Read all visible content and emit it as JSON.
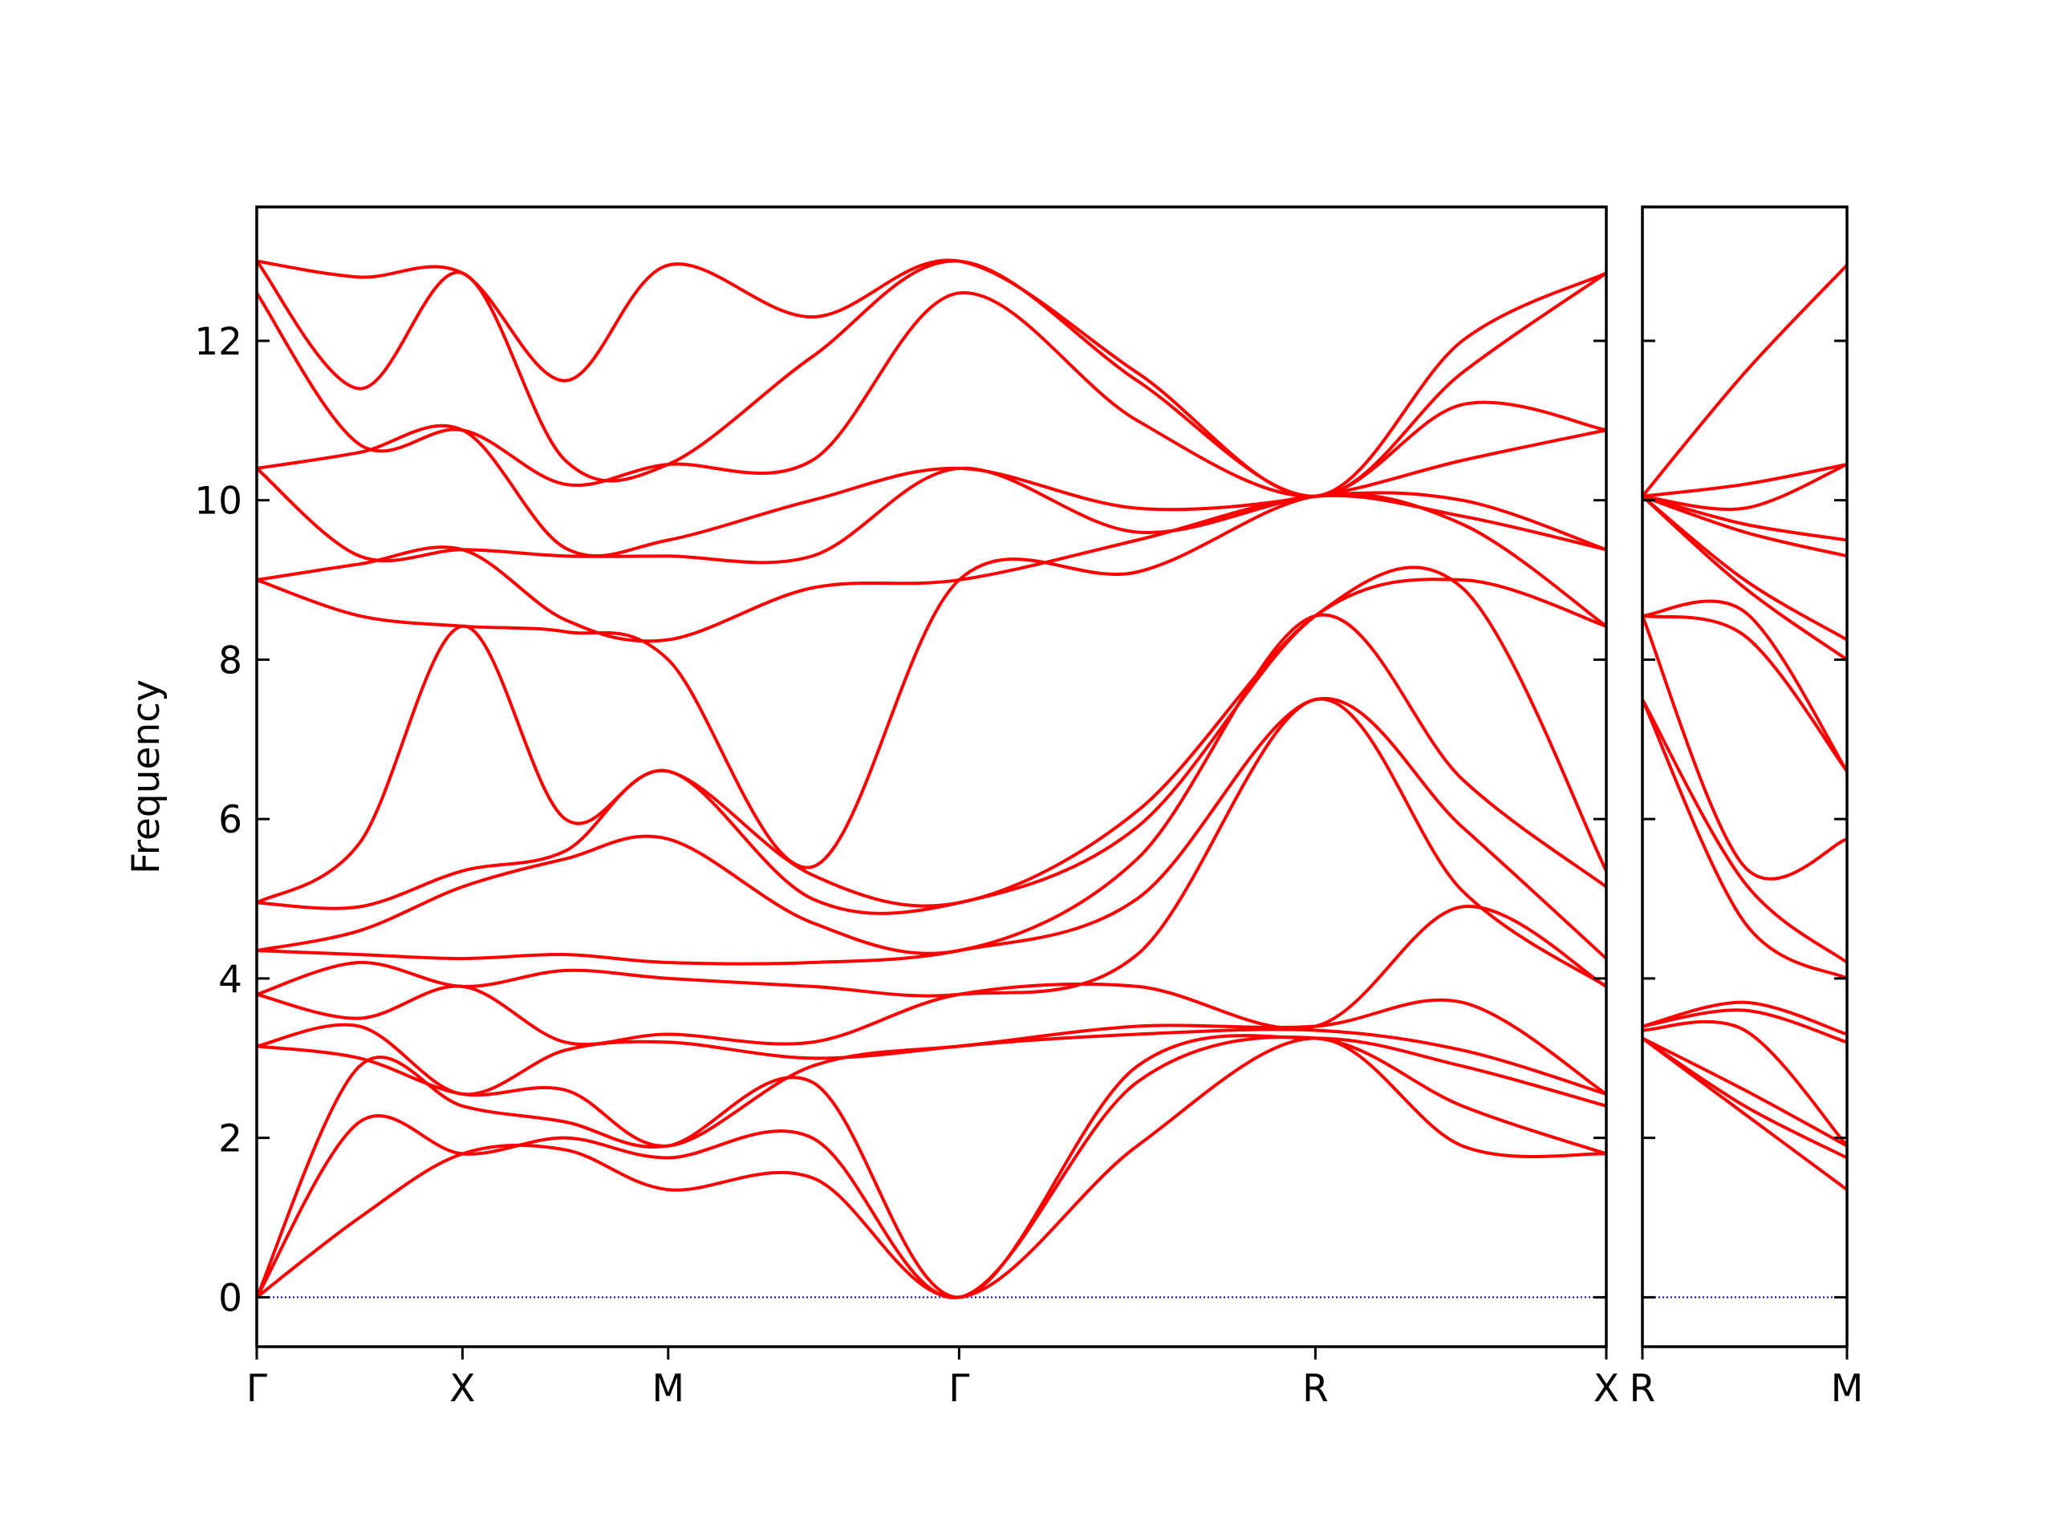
{
  "chart_data": [
    {
      "type": "line",
      "y_label": "Frequency",
      "color": "#ff0000",
      "x": [
        0,
        0.25,
        0.5,
        0.75,
        1.0,
        1.35,
        1.707,
        2.14,
        2.573,
        2.93,
        3.28
      ],
      "xlim": [
        0,
        3.28
      ],
      "xticks": [
        {
          "value": 0,
          "label": "Γ"
        },
        {
          "value": 0.5,
          "label": "X"
        },
        {
          "value": 1.0,
          "label": "M"
        },
        {
          "value": 1.707,
          "label": "Γ"
        },
        {
          "value": 2.573,
          "label": "R"
        },
        {
          "value": 3.28,
          "label": "X"
        }
      ],
      "ylim": [
        -0.62,
        13.68
      ],
      "yticks": [
        0,
        2,
        4,
        6,
        8,
        10,
        12
      ],
      "show_ytick_labels": true,
      "hlines": [
        {
          "value": 0,
          "color": "#0000cc"
        }
      ],
      "series": [
        {
          "values": [
            0,
            1.0,
            1.8,
            1.85,
            1.35,
            1.5,
            0,
            1.9,
            3.25,
            1.9,
            1.8
          ]
        },
        {
          "values": [
            0,
            2.2,
            1.8,
            2.0,
            1.75,
            2.0,
            0,
            2.7,
            3.25,
            2.4,
            1.8
          ]
        },
        {
          "values": [
            0,
            2.9,
            2.4,
            2.2,
            1.9,
            2.7,
            0,
            2.9,
            3.25,
            2.9,
            2.4
          ]
        },
        {
          "values": [
            3.15,
            3.0,
            2.55,
            2.6,
            1.9,
            2.9,
            3.15,
            3.3,
            3.35,
            3.1,
            2.55
          ]
        },
        {
          "values": [
            3.15,
            3.4,
            2.55,
            3.1,
            3.2,
            3.0,
            3.15,
            3.4,
            3.4,
            3.7,
            2.55
          ]
        },
        {
          "values": [
            3.8,
            3.5,
            3.9,
            3.2,
            3.3,
            3.2,
            3.8,
            3.9,
            3.4,
            4.9,
            3.9
          ]
        },
        {
          "values": [
            3.8,
            4.2,
            3.9,
            4.1,
            4.0,
            3.9,
            3.8,
            4.3,
            7.5,
            5.1,
            3.9
          ]
        },
        {
          "values": [
            4.35,
            4.3,
            4.25,
            4.3,
            4.2,
            4.2,
            4.35,
            5.0,
            7.5,
            5.9,
            4.25
          ]
        },
        {
          "values": [
            4.35,
            4.6,
            5.15,
            5.5,
            5.75,
            4.7,
            4.35,
            5.5,
            8.55,
            6.5,
            5.15
          ]
        },
        {
          "values": [
            4.95,
            4.9,
            5.35,
            5.6,
            6.6,
            5.0,
            4.95,
            5.9,
            8.55,
            8.9,
            5.35
          ]
        },
        {
          "values": [
            4.95,
            5.7,
            8.42,
            6.0,
            6.6,
            5.3,
            4.95,
            6.1,
            8.55,
            9.0,
            8.42
          ]
        },
        {
          "values": [
            9.0,
            8.55,
            8.42,
            8.35,
            8.0,
            5.4,
            9.0,
            9.1,
            10.05,
            9.7,
            8.42
          ]
        },
        {
          "values": [
            9.0,
            9.2,
            9.38,
            8.5,
            8.25,
            8.9,
            9.0,
            9.5,
            10.05,
            9.8,
            9.38
          ]
        },
        {
          "values": [
            10.4,
            9.3,
            9.38,
            9.3,
            9.3,
            9.3,
            10.4,
            9.6,
            10.05,
            10.0,
            9.38
          ]
        },
        {
          "values": [
            10.4,
            10.6,
            10.88,
            9.4,
            9.5,
            10.0,
            10.4,
            9.9,
            10.05,
            10.5,
            10.88
          ]
        },
        {
          "values": [
            12.6,
            10.7,
            10.88,
            10.2,
            10.45,
            10.5,
            12.6,
            11.0,
            10.05,
            11.2,
            10.88
          ]
        },
        {
          "values": [
            13.0,
            11.4,
            12.85,
            10.5,
            10.45,
            11.8,
            13.0,
            11.5,
            10.05,
            11.6,
            12.85
          ]
        },
        {
          "values": [
            13.0,
            12.8,
            12.85,
            11.5,
            12.95,
            12.3,
            13.0,
            11.6,
            10.05,
            12.0,
            12.85
          ]
        }
      ]
    },
    {
      "type": "line",
      "color": "#ff0000",
      "x": [
        0,
        0.25,
        0.5
      ],
      "xlim": [
        0,
        0.5
      ],
      "xticks": [
        {
          "value": 0,
          "label": "R"
        },
        {
          "value": 0.5,
          "label": "M"
        }
      ],
      "ylim": [
        -0.62,
        13.68
      ],
      "yticks": [
        0,
        2,
        4,
        6,
        8,
        10,
        12
      ],
      "show_ytick_labels": false,
      "hlines": [
        {
          "value": 0,
          "color": "#0000cc"
        }
      ],
      "series": [
        {
          "values": [
            3.25,
            2.3,
            1.35
          ]
        },
        {
          "values": [
            3.25,
            2.4,
            1.75
          ]
        },
        {
          "values": [
            3.25,
            2.6,
            1.9
          ]
        },
        {
          "values": [
            3.35,
            3.35,
            1.9
          ]
        },
        {
          "values": [
            3.4,
            3.6,
            3.2
          ]
        },
        {
          "values": [
            3.4,
            3.7,
            3.3
          ]
        },
        {
          "values": [
            7.5,
            4.7,
            4.0
          ]
        },
        {
          "values": [
            7.5,
            5.2,
            4.2
          ]
        },
        {
          "values": [
            8.55,
            5.4,
            5.75
          ]
        },
        {
          "values": [
            8.55,
            8.3,
            6.6
          ]
        },
        {
          "values": [
            8.55,
            8.6,
            6.6
          ]
        },
        {
          "values": [
            10.05,
            8.9,
            8.0
          ]
        },
        {
          "values": [
            10.05,
            9.0,
            8.25
          ]
        },
        {
          "values": [
            10.05,
            9.6,
            9.3
          ]
        },
        {
          "values": [
            10.05,
            9.7,
            9.5
          ]
        },
        {
          "values": [
            10.05,
            9.9,
            10.45
          ]
        },
        {
          "values": [
            10.05,
            10.2,
            10.45
          ]
        },
        {
          "values": [
            10.05,
            11.6,
            12.95
          ]
        }
      ]
    }
  ]
}
